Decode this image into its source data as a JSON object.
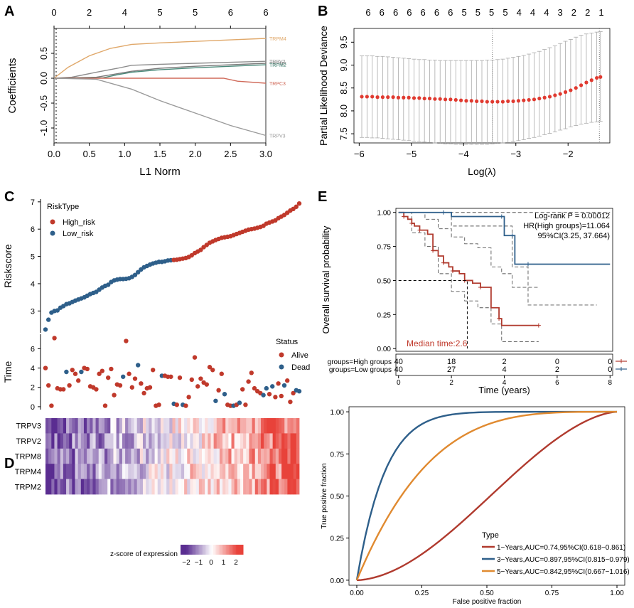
{
  "panel_letters": {
    "A": "A",
    "B": "B",
    "C": "C",
    "D": "D",
    "E": "E"
  },
  "chart_data": [
    {
      "id": "A",
      "type": "line",
      "title": "",
      "xlabel": "L1 Norm",
      "ylabel": "Coefficients",
      "xlim": [
        0,
        3.0
      ],
      "ylim": [
        -1.3,
        1.0
      ],
      "xticks": [
        0.0,
        0.5,
        1.0,
        1.5,
        2.0,
        2.5,
        3.0
      ],
      "xtick_labels": [
        "0.0",
        "0.5",
        "1.0",
        "1.5",
        "2.0",
        "2.5",
        "3.0"
      ],
      "yticks": [
        -1.0,
        -0.5,
        0.0,
        0.5
      ],
      "ytick_labels": [
        "-1.0",
        "-0.5",
        "0.0",
        "0.5"
      ],
      "top_ticks": [
        0,
        0.5,
        1.0,
        1.5,
        2.0,
        2.5,
        3.0
      ],
      "top_labels": [
        "0",
        "2",
        "4",
        "5",
        "5",
        "6",
        "6"
      ],
      "vline_x": 0.03,
      "series": [
        {
          "name": "TRPM4",
          "color": "#e0a86a",
          "x": [
            0,
            0.2,
            0.5,
            0.8,
            1.1,
            1.5,
            2.0,
            2.5,
            3.0
          ],
          "y": [
            0,
            0.22,
            0.45,
            0.6,
            0.68,
            0.71,
            0.74,
            0.77,
            0.8
          ]
        },
        {
          "name": "TRPV2",
          "color": "#8c8c8c",
          "x": [
            0,
            0.25,
            0.6,
            0.9,
            1.1,
            1.5,
            2.0,
            2.5,
            3.0
          ],
          "y": [
            0,
            0.02,
            0.12,
            0.2,
            0.26,
            0.28,
            0.3,
            0.32,
            0.34
          ]
        },
        {
          "name": "TRPM8",
          "color": "#7a7a7a",
          "x": [
            0,
            0.6,
            0.85,
            1.1,
            1.5,
            2.0,
            2.5,
            3.0
          ],
          "y": [
            0,
            0.02,
            0.08,
            0.14,
            0.2,
            0.24,
            0.27,
            0.3
          ]
        },
        {
          "name": "TRPM2",
          "color": "#4a8a7a",
          "x": [
            0,
            0.7,
            0.9,
            1.1,
            1.5,
            2.0,
            2.5,
            3.0
          ],
          "y": [
            0,
            0.01,
            0.07,
            0.12,
            0.17,
            0.21,
            0.24,
            0.27
          ]
        },
        {
          "name": "TRPC3",
          "color": "#d06a5a",
          "x": [
            0,
            1.1,
            1.5,
            2.0,
            2.4,
            2.6,
            3.0
          ],
          "y": [
            0,
            0,
            0,
            0,
            0,
            -0.06,
            -0.1
          ]
        },
        {
          "name": "TRPV3",
          "color": "#9a9a9a",
          "x": [
            0,
            0.6,
            1.1,
            1.5,
            2.0,
            2.5,
            3.0
          ],
          "y": [
            0,
            -0.02,
            -0.22,
            -0.45,
            -0.7,
            -0.95,
            -1.15
          ]
        }
      ],
      "line_labels": [
        "TRPM4",
        "TRPV2",
        "TRPM8",
        "TRPM2",
        "TRPC3",
        "TRPV3"
      ]
    },
    {
      "id": "B",
      "type": "scatter",
      "xlabel": "Log(λ)",
      "ylabel": "Partial Likelihood Deviance",
      "xlim": [
        -6.1,
        -1.2
      ],
      "ylim": [
        7.3,
        9.8
      ],
      "xticks": [
        -6,
        -5,
        -4,
        -3,
        -2
      ],
      "xtick_labels": [
        "−6",
        "−5",
        "−4",
        "−3",
        "−2"
      ],
      "yticks": [
        7.5,
        8.0,
        8.5,
        9.0,
        9.5
      ],
      "ytick_labels": [
        "7.5",
        "8.0",
        "8.5",
        "9.0",
        "9.5"
      ],
      "top_labels": [
        "6",
        "6",
        "6",
        "6",
        "6",
        "6",
        "6",
        "5",
        "5",
        "5",
        "5",
        "4",
        "4",
        "4",
        "3",
        "2",
        "2",
        "1"
      ],
      "vlines": [
        -3.45,
        -1.4
      ],
      "points_x": [
        -5.95,
        -5.85,
        -5.75,
        -5.65,
        -5.55,
        -5.45,
        -5.35,
        -5.25,
        -5.15,
        -5.05,
        -4.95,
        -4.85,
        -4.75,
        -4.65,
        -4.55,
        -4.45,
        -4.35,
        -4.25,
        -4.15,
        -4.05,
        -3.95,
        -3.85,
        -3.75,
        -3.65,
        -3.55,
        -3.45,
        -3.35,
        -3.25,
        -3.15,
        -3.05,
        -2.95,
        -2.85,
        -2.75,
        -2.65,
        -2.55,
        -2.45,
        -2.35,
        -2.25,
        -2.15,
        -2.05,
        -1.95,
        -1.85,
        -1.75,
        -1.65,
        -1.55,
        -1.45,
        -1.38
      ],
      "points_y": [
        8.31,
        8.31,
        8.31,
        8.3,
        8.3,
        8.3,
        8.3,
        8.29,
        8.29,
        8.29,
        8.28,
        8.28,
        8.27,
        8.27,
        8.26,
        8.26,
        8.25,
        8.25,
        8.24,
        8.23,
        8.22,
        8.22,
        8.21,
        8.21,
        8.2,
        8.2,
        8.2,
        8.2,
        8.21,
        8.21,
        8.22,
        8.23,
        8.24,
        8.25,
        8.27,
        8.29,
        8.31,
        8.34,
        8.37,
        8.41,
        8.45,
        8.5,
        8.56,
        8.62,
        8.67,
        8.72,
        8.74
      ],
      "err_low": [
        7.42,
        7.42,
        7.41,
        7.41,
        7.4,
        7.39,
        7.38,
        7.37,
        7.36,
        7.35,
        7.34,
        7.33,
        7.32,
        7.31,
        7.3,
        7.29,
        7.28,
        7.28,
        7.27,
        7.27,
        7.27,
        7.27,
        7.27,
        7.27,
        7.27,
        7.28,
        7.29,
        7.3,
        7.31,
        7.33,
        7.35,
        7.37,
        7.4,
        7.42,
        7.45,
        7.48,
        7.51,
        7.54,
        7.58,
        7.61,
        7.65,
        7.68,
        7.71,
        7.73,
        7.75,
        7.76,
        7.77
      ],
      "err_high": [
        9.2,
        9.2,
        9.2,
        9.19,
        9.19,
        9.18,
        9.17,
        9.16,
        9.15,
        9.14,
        9.13,
        9.12,
        9.12,
        9.11,
        9.11,
        9.1,
        9.1,
        9.1,
        9.1,
        9.1,
        9.1,
        9.1,
        9.1,
        9.1,
        9.11,
        9.11,
        9.12,
        9.13,
        9.15,
        9.17,
        9.19,
        9.21,
        9.24,
        9.27,
        9.3,
        9.34,
        9.38,
        9.42,
        9.47,
        9.52,
        9.56,
        9.61,
        9.65,
        9.68,
        9.7,
        9.72,
        9.73
      ],
      "point_color": "#e03a30"
    },
    {
      "id": "C-risk",
      "type": "scatter",
      "ylabel": "Riskscore",
      "ylim": [
        2.2,
        7.1
      ],
      "yticks": [
        3,
        4,
        5,
        6,
        7
      ],
      "ytick_labels": [
        "3",
        "4",
        "5",
        "6",
        "7"
      ],
      "legend_title": "RiskType",
      "legend": [
        {
          "name": "High_risk",
          "color": "#c0392b"
        },
        {
          "name": "Low_risk",
          "color": "#2e5f8a"
        }
      ],
      "n_low": 43,
      "n_total": 86,
      "scores": [
        2.32,
        2.68,
        2.94,
        3.0,
        3.02,
        3.12,
        3.18,
        3.25,
        3.28,
        3.33,
        3.38,
        3.42,
        3.46,
        3.5,
        3.56,
        3.62,
        3.66,
        3.7,
        3.78,
        3.86,
        3.92,
        3.96,
        4.06,
        4.12,
        4.15,
        4.17,
        4.17,
        4.18,
        4.2,
        4.25,
        4.32,
        4.42,
        4.52,
        4.6,
        4.65,
        4.7,
        4.74,
        4.77,
        4.8,
        4.8,
        4.82,
        4.85,
        4.86,
        4.87,
        4.88,
        4.9,
        4.92,
        4.94,
        4.98,
        5.04,
        5.12,
        5.18,
        5.24,
        5.34,
        5.42,
        5.5,
        5.55,
        5.6,
        5.64,
        5.68,
        5.7,
        5.72,
        5.74,
        5.78,
        5.82,
        5.86,
        5.9,
        5.94,
        5.98,
        6.0,
        6.02,
        6.05,
        6.08,
        6.12,
        6.2,
        6.24,
        6.28,
        6.32,
        6.4,
        6.46,
        6.52,
        6.6,
        6.68,
        6.74,
        6.82,
        6.94
      ]
    },
    {
      "id": "C-time",
      "type": "scatter",
      "ylabel": "Time",
      "ylim": [
        -0.3,
        7.5
      ],
      "yticks": [
        0,
        2,
        4,
        6
      ],
      "ytick_labels": [
        "0",
        "2",
        "4",
        "6"
      ],
      "legend_title": "Status",
      "legend": [
        {
          "name": "Alive",
          "color": "#c0392b"
        },
        {
          "name": "Dead",
          "color": "#2e5f8a"
        }
      ],
      "times": [
        4.0,
        2.2,
        0.1,
        7.1,
        1.9,
        1.8,
        1.8,
        3.6,
        2.2,
        3.8,
        3.4,
        2.7,
        3.6,
        4.0,
        3.9,
        2.1,
        2.0,
        1.8,
        3.4,
        3.7,
        0.1,
        3.0,
        3.9,
        1.2,
        2.3,
        2.2,
        3.1,
        6.8,
        3.4,
        2.0,
        2.9,
        4.3,
        2.4,
        1.4,
        1.9,
        2.0,
        3.8,
        0.1,
        0.2,
        3.2,
        3.2,
        3.1,
        3.1,
        0.3,
        0.2,
        3.0,
        0.2,
        0.1,
        1.0,
        2.8,
        5.1,
        2.1,
        2.9,
        2.5,
        2.3,
        4.1,
        3.8,
        0.6,
        1.7,
        3.4,
        1.3,
        0.2,
        0.1,
        0.1,
        0.2,
        0.4,
        1.8,
        0.2,
        2.6,
        3.5,
        1.9,
        1.6,
        1.4,
        1.2,
        1.9,
        1.3,
        2.1,
        1.0,
        2.4,
        1.1,
        2.2,
        2.7,
        0.5,
        1.4,
        1.7,
        1.6
      ],
      "dead": [
        7,
        12,
        26,
        31,
        39,
        43,
        46,
        57,
        60,
        63,
        65,
        73,
        74,
        76,
        80,
        84,
        85,
        86
      ]
    },
    {
      "id": "D",
      "type": "heatmap",
      "rows": [
        "TRPV3",
        "TRPV2",
        "TRPM8",
        "TRPM4",
        "TRPM2"
      ],
      "colorbar_label": "z-score of expression",
      "colorbar_ticks": [
        "−2",
        "−1",
        "0",
        "1",
        "2"
      ],
      "low_color": "#5a2d91",
      "mid_color": "#ffffff",
      "high_color": "#e8423a",
      "n_cols": 86
    },
    {
      "id": "E",
      "type": "line",
      "xlabel": "Time (years)",
      "ylabel": "Overall survival probability",
      "xlim": [
        -0.1,
        8.1
      ],
      "ylim": [
        -0.02,
        1.03
      ],
      "xticks": [
        0,
        2,
        4,
        6,
        8
      ],
      "xtick_labels": [
        "0",
        "2",
        "4",
        "6",
        "8"
      ],
      "yticks": [
        0.0,
        0.25,
        0.5,
        0.75,
        1.0
      ],
      "ytick_labels": [
        "0.00",
        "0.25",
        "0.50",
        "0.75",
        "1.00"
      ],
      "annotation": [
        "Log-rank P = 0.00012",
        "HR(High groups)=11.064",
        "95%CI(3.25, 37.664)"
      ],
      "median_text": "Median time:2.6",
      "median_x": 2.6,
      "series": [
        {
          "name": "High groups",
          "color": "#b03a2e",
          "x": [
            0,
            0.2,
            0.35,
            0.5,
            0.6,
            0.8,
            1.1,
            1.3,
            1.5,
            1.7,
            1.9,
            2.05,
            2.3,
            2.5,
            2.8,
            3.1,
            3.5,
            3.8,
            3.9,
            5.3
          ],
          "y": [
            1.0,
            0.97,
            0.95,
            0.92,
            0.9,
            0.87,
            0.84,
            0.72,
            0.68,
            0.63,
            0.6,
            0.57,
            0.55,
            0.5,
            0.48,
            0.45,
            0.3,
            0.22,
            0.17,
            0.17
          ]
        },
        {
          "name": "Low groups",
          "color": "#2e5f8a",
          "x": [
            0,
            1.7,
            2.0,
            3.9,
            4.0,
            4.3,
            4.4,
            4.9,
            8.0
          ],
          "y": [
            1.0,
            1.0,
            0.97,
            0.97,
            0.83,
            0.83,
            0.62,
            0.62,
            0.62
          ]
        }
      ],
      "ci_high_upper_x": [
        0,
        0.5,
        1.0,
        1.5,
        2.0,
        2.5,
        3.0,
        3.5,
        3.9,
        4.3,
        5.3
      ],
      "ci_high_upper_y": [
        1.0,
        1.0,
        0.95,
        0.88,
        0.82,
        0.77,
        0.74,
        0.6,
        0.55,
        0.45,
        0.45
      ],
      "ci_high_lower_x": [
        0,
        0.5,
        1.0,
        1.5,
        2.0,
        2.5,
        3.0,
        3.5,
        3.9,
        5.3
      ],
      "ci_high_lower_y": [
        1.0,
        0.85,
        0.75,
        0.55,
        0.42,
        0.35,
        0.3,
        0.18,
        0.05,
        0.05
      ],
      "ci_low_upper_x": [
        0,
        8.0
      ],
      "ci_low_upper_y": [
        1.0,
        1.0
      ],
      "ci_low_lower_x": [
        0,
        2.0,
        3.9,
        4.3,
        4.9,
        7.5
      ],
      "ci_low_lower_y": [
        1.0,
        0.9,
        0.9,
        0.6,
        0.32,
        0.32
      ],
      "risk_table": {
        "rows": [
          {
            "label": "groups=High groups",
            "values": [
              "40",
              "18",
              "2",
              "0",
              "0"
            ],
            "color": "#b03a2e"
          },
          {
            "label": "groups=Low groups",
            "values": [
              "40",
              "27",
              "4",
              "2",
              "0"
            ],
            "color": "#2e5f8a"
          }
        ]
      }
    },
    {
      "id": "ROC",
      "type": "line",
      "xlabel": "False positive fraction",
      "ylabel": "True positive fraction",
      "xlim": [
        -0.03,
        1.03
      ],
      "ylim": [
        -0.03,
        1.03
      ],
      "xticks": [
        0,
        0.25,
        0.5,
        0.75,
        1.0
      ],
      "xtick_labels": [
        "0.00",
        "0.25",
        "0.50",
        "0.75",
        "1.00"
      ],
      "yticks": [
        0,
        0.25,
        0.5,
        0.75,
        1.0
      ],
      "ytick_labels": [
        "0.00",
        "0.25",
        "0.50",
        "0.75",
        "1.00"
      ],
      "legend_title": "Type",
      "series": [
        {
          "name": "1−Years,AUC=0.74,95%CI(0.618−0.861)",
          "color": "#b03a2e",
          "k": 1.9
        },
        {
          "name": "3−Years,AUC=0.897,95%CI(0.815−0.979)",
          "color": "#2e5f8a",
          "k": 0.11
        },
        {
          "name": "5−Years,AUC=0.842,95%CI(0.667−1.016)",
          "color": "#e08a30",
          "k": 0.27
        }
      ]
    }
  ]
}
